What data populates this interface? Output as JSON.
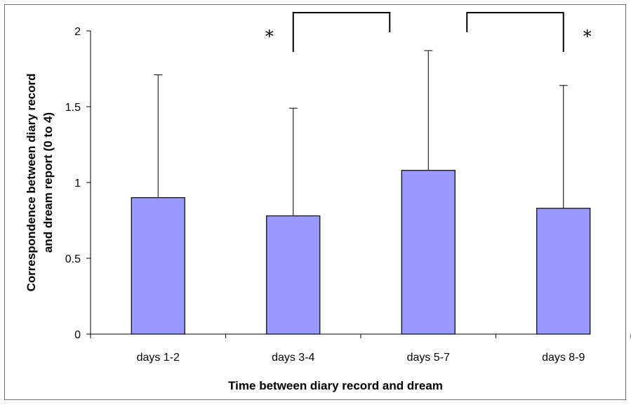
{
  "chart_data": {
    "type": "bar",
    "categories": [
      "days 1-2",
      "days 3-4",
      "days 5-7",
      "days 8-9"
    ],
    "values": [
      0.9,
      0.78,
      1.08,
      0.83
    ],
    "error_upper": [
      1.71,
      1.49,
      1.87,
      1.64
    ],
    "xlabel": "Time between diary record and dream",
    "ylabel_lines": [
      "Correspondence between diary record",
      "and dream report  (0 to 4)"
    ],
    "ylim": [
      0,
      2
    ],
    "yticks": [
      0,
      0.5,
      1,
      1.5,
      2
    ],
    "ytick_labels": [
      "0",
      "0.5",
      "1",
      "1.5",
      "2"
    ],
    "bar_color": "#9999ff",
    "grid": false,
    "significance": [
      {
        "between": [
          "days 3-4",
          "days 5-7"
        ],
        "marker": "*"
      },
      {
        "between": [
          "days 5-7",
          "days 8-9"
        ],
        "marker": "*"
      }
    ]
  }
}
